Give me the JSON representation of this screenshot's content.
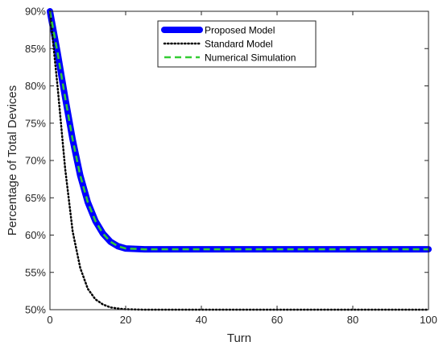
{
  "chart_data": {
    "type": "line",
    "xlabel": "Turn",
    "ylabel": "Percentage of Total Devices",
    "xlim": [
      0,
      100
    ],
    "ylim": [
      50,
      90
    ],
    "xticks": [
      0,
      20,
      40,
      60,
      80,
      100
    ],
    "xtick_labels": [
      "0",
      "20",
      "40",
      "60",
      "80",
      "100"
    ],
    "yticks": [
      50,
      55,
      60,
      65,
      70,
      75,
      80,
      85,
      90
    ],
    "ytick_labels": [
      "50%",
      "55%",
      "60%",
      "65%",
      "70%",
      "75%",
      "80%",
      "85%",
      "90%"
    ],
    "grid": false,
    "legend_position": "top-center",
    "x": [
      0,
      2,
      4,
      6,
      8,
      10,
      12,
      14,
      16,
      18,
      20,
      25,
      30,
      40,
      50,
      60,
      70,
      80,
      90,
      100
    ],
    "series": [
      {
        "name": "Proposed Model",
        "style": "solid-thick",
        "color": "#0000ff",
        "values": [
          90,
          84.5,
          78.5,
          72.8,
          68.0,
          64.4,
          61.9,
          60.2,
          59.1,
          58.5,
          58.2,
          58.1,
          58.1,
          58.1,
          58.1,
          58.1,
          58.1,
          58.1,
          58.1,
          58.1
        ]
      },
      {
        "name": "Standard Model",
        "style": "dotted",
        "color": "#000000",
        "values": [
          90,
          80.0,
          69.0,
          60.5,
          55.6,
          52.8,
          51.4,
          50.7,
          50.3,
          50.15,
          50.05,
          50.0,
          50.0,
          50.0,
          50.0,
          50.0,
          50.0,
          50.0,
          50.0,
          50.0
        ]
      },
      {
        "name": "Numerical Simulation",
        "style": "dashed",
        "color": "#33cc33",
        "values": [
          90,
          84.5,
          78.5,
          72.8,
          68.0,
          64.4,
          61.9,
          60.2,
          59.1,
          58.5,
          58.2,
          58.1,
          58.1,
          58.1,
          58.1,
          58.1,
          58.1,
          58.1,
          58.1,
          58.1
        ]
      }
    ]
  }
}
